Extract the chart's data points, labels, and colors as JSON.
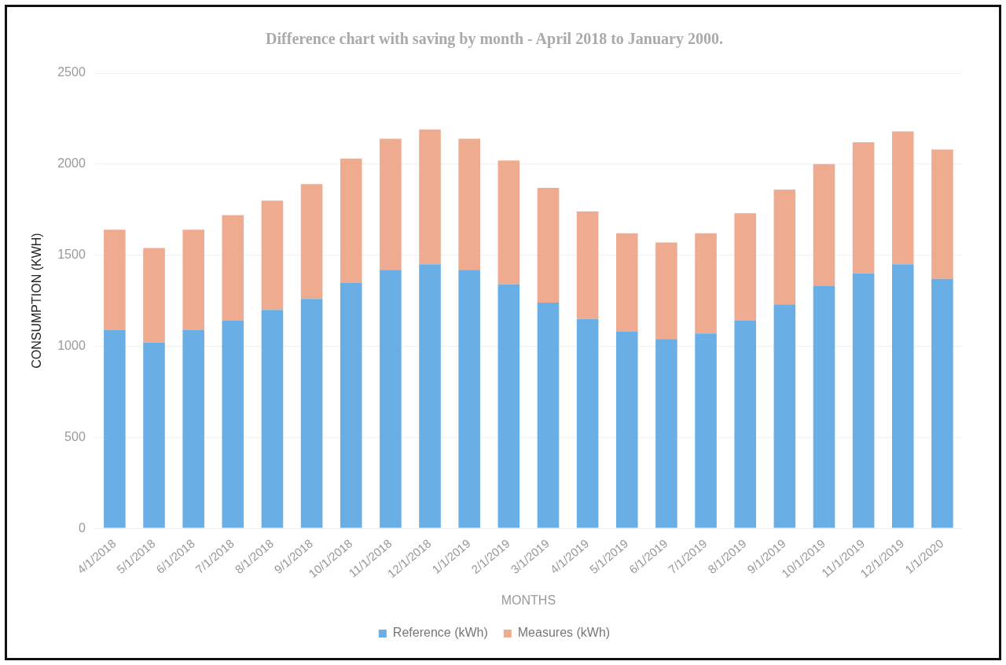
{
  "chart_data": {
    "type": "bar",
    "stacked": true,
    "title": "Difference chart with saving by month - April 2018 to January 2000.",
    "xlabel": "MONTHS",
    "ylabel": "CONSUMPTION (KWH)",
    "categories": [
      "4/1/2018",
      "5/1/2018",
      "6/1/2018",
      "7/1/2018",
      "8/1/2018",
      "9/1/2018",
      "10/1/2018",
      "11/1/2018",
      "12/1/2018",
      "1/1/2019",
      "2/1/2019",
      "3/1/2019",
      "4/1/2019",
      "5/1/2019",
      "6/1/2019",
      "7/1/2019",
      "8/1/2019",
      "9/1/2019",
      "10/1/2019",
      "11/1/2019",
      "12/1/2019",
      "1/1/2020"
    ],
    "series": [
      {
        "name": "Reference (kWh)",
        "color": "#6aaee6",
        "values": [
          1090,
          1020,
          1090,
          1140,
          1200,
          1260,
          1350,
          1420,
          1450,
          1420,
          1340,
          1240,
          1150,
          1080,
          1040,
          1070,
          1140,
          1230,
          1330,
          1400,
          1450,
          1370
        ]
      },
      {
        "name": "Measures (kWh)",
        "color": "#eeab90",
        "values": [
          550,
          520,
          550,
          580,
          600,
          630,
          680,
          720,
          740,
          720,
          680,
          630,
          590,
          540,
          530,
          550,
          590,
          630,
          670,
          720,
          730,
          710
        ]
      }
    ],
    "ylim": [
      0,
      2500
    ],
    "yticks": [
      0,
      500,
      1000,
      1500,
      2000,
      2500
    ],
    "grid": "y",
    "legend": "bottom"
  }
}
